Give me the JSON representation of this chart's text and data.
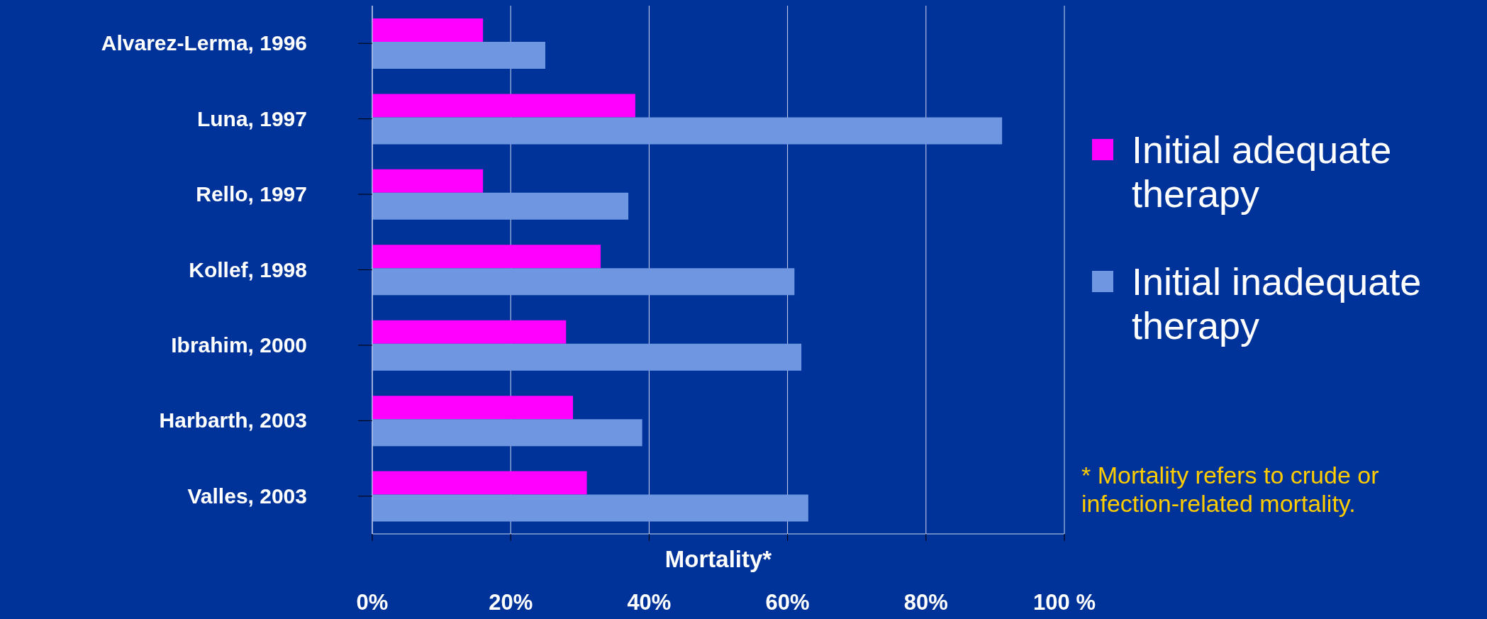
{
  "chart_data": {
    "type": "bar",
    "orientation": "horizontal",
    "xlabel": "Mortality*",
    "categories": [
      "Alvarez-Lerma, 1996",
      "Luna, 1997",
      "Rello, 1997",
      "Kollef, 1998",
      "Ibrahim, 2000",
      "Harbarth, 2003",
      "Valles, 2003"
    ],
    "series": [
      {
        "name": "Initial adequate therapy",
        "color": "#ff00ff",
        "values": [
          16,
          38,
          16,
          33,
          28,
          29,
          31
        ]
      },
      {
        "name": "Initial inadequate therapy",
        "color": "#6f96e0",
        "values": [
          25,
          91,
          37,
          61,
          62,
          39,
          63
        ]
      }
    ],
    "xlim": [
      0,
      100
    ],
    "xticks": [
      {
        "value": 0,
        "label": "0%"
      },
      {
        "value": 20,
        "label": "20%"
      },
      {
        "value": 40,
        "label": "40%"
      },
      {
        "value": 60,
        "label": "60%"
      },
      {
        "value": 80,
        "label": "80%"
      },
      {
        "value": 100,
        "label": "100 %"
      }
    ],
    "grid": "x",
    "legend": "right",
    "annotations": [
      "* Mortality refers to crude or infection-related mortality."
    ]
  }
}
